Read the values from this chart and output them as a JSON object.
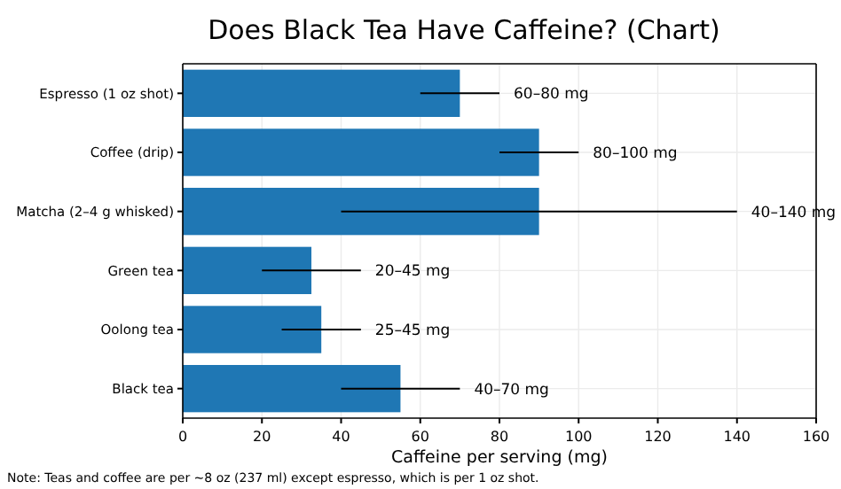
{
  "chart_data": {
    "type": "bar",
    "orientation": "horizontal",
    "title": "Does Black Tea Have Caffeine? (Chart)",
    "xlabel": "Caffeine per serving (mg)",
    "categories": [
      "Espresso (1 oz shot)",
      "Coffee (drip)",
      "Matcha (2–4 g whisked)",
      "Green tea",
      "Oolong tea",
      "Black tea"
    ],
    "values": [
      70,
      90,
      90,
      32.5,
      35,
      55
    ],
    "errors": [
      [
        60,
        80
      ],
      [
        80,
        100
      ],
      [
        40,
        140
      ],
      [
        20,
        45
      ],
      [
        25,
        45
      ],
      [
        40,
        70
      ]
    ],
    "color": "#1f77b4",
    "xlim": [
      0,
      160
    ],
    "xticks": [
      0,
      20,
      40,
      60,
      80,
      100,
      120,
      140,
      160
    ],
    "grid": true,
    "annotations": [
      {
        "text": "60–80 mg",
        "x": 80,
        "y": "Espresso (1 oz shot)"
      },
      {
        "text": "80–100 mg",
        "x": 100,
        "y": "Coffee (drip)"
      },
      {
        "text": "40–140 mg",
        "x": 140,
        "y": "Matcha (2–4 g whisked)"
      },
      {
        "text": "20–45 mg",
        "x": 45,
        "y": "Green tea"
      },
      {
        "text": "25–45 mg",
        "x": 45,
        "y": "Oolong tea"
      },
      {
        "text": "40–70 mg",
        "x": 70,
        "y": "Black tea"
      },
      "Note: Teas and coffee are per ~8 oz (237 ml) except espresso, which is per 1 oz shot."
    ]
  }
}
